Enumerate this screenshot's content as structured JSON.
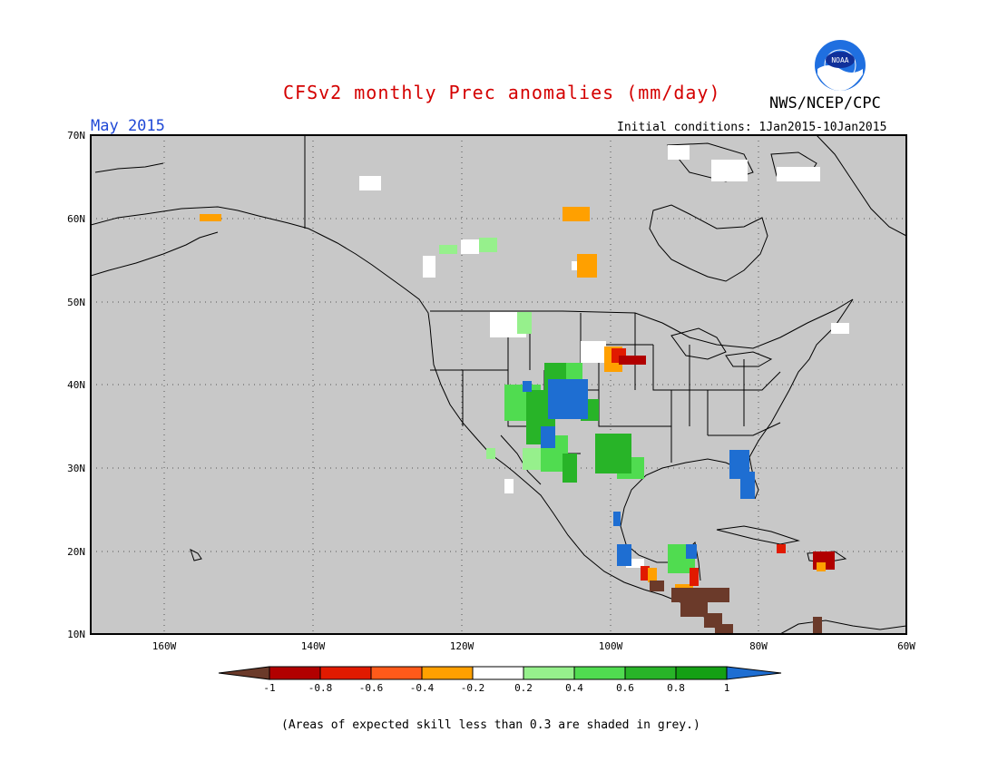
{
  "header": {
    "title": "CFSv2 monthly Prec anomalies (mm/day)",
    "org": "NWS/NCEP/CPC",
    "month": "May 2015",
    "initial_conditions": "Initial conditions: 1Jan2015-10Jan2015",
    "logo_text": "NOAA"
  },
  "map": {
    "lat_labels": [
      "70N",
      "60N",
      "50N",
      "40N",
      "30N",
      "20N",
      "10N"
    ],
    "lon_labels": [
      "160W",
      "140W",
      "120W",
      "100W",
      "80W",
      "60W"
    ],
    "colors": {
      "background": "#c8c8c8",
      "frame": "#000000",
      "coast": "#000000"
    }
  },
  "legend": {
    "labels": [
      "-1",
      "-0.8",
      "-0.6",
      "-0.4",
      "-0.2",
      "0.2",
      "0.4",
      "0.6",
      "0.8",
      "1"
    ],
    "colors": [
      "#6b3a2a",
      "#b10000",
      "#e11a00",
      "#ff5a1a",
      "#ffa000",
      "#ffffff",
      "#96f08c",
      "#50dc50",
      "#28b428",
      "#14a014",
      "#1e6ed2"
    ]
  },
  "footnote": "(Areas of expected skill less than 0.3 are shaded in grey.)",
  "anomaly_patches": [
    {
      "region": "Colorado/New Mexico",
      "class": "1",
      "color": "#1e6ed2"
    },
    {
      "region": "Southern Rockies",
      "class": "0.6-0.8",
      "color": "#28b428"
    },
    {
      "region": "Texas",
      "class": "0.6-0.8",
      "color": "#28b428"
    },
    {
      "region": "Florida",
      "class": "1",
      "color": "#1e6ed2"
    },
    {
      "region": "Minnesota/Iowa",
      "class": "-0.8 to -0.4",
      "color": "#e11a00"
    },
    {
      "region": "Central America",
      "class": "-1",
      "color": "#6b3a2a"
    },
    {
      "region": "Hispaniola",
      "class": "-0.8",
      "color": "#b10000"
    },
    {
      "region": "Northern Canada",
      "class": "-0.4",
      "color": "#ffa000"
    }
  ]
}
